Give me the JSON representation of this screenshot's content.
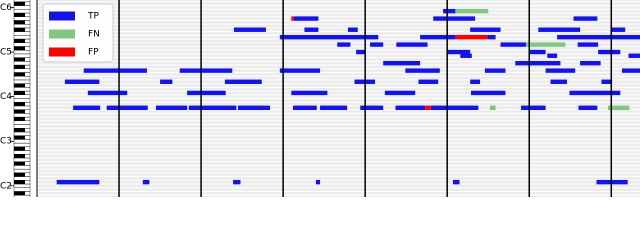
{
  "chart_data": {
    "type": "piano-roll",
    "ylim": [
      33,
      86
    ],
    "yticks": [
      {
        "value": 36,
        "label": "C2"
      },
      {
        "value": 48,
        "label": "C3"
      },
      {
        "value": 60,
        "label": "C4"
      },
      {
        "value": 72,
        "label": "C5"
      },
      {
        "value": 84,
        "label": "C6"
      }
    ],
    "xlim": [
      0,
      7.35
    ],
    "bar_lines": [
      1,
      2,
      3,
      4,
      5,
      6,
      7
    ],
    "legend": "upper left",
    "series": [
      {
        "name": "TP",
        "color": "#1414e6",
        "notes": [
          [
            83,
            4.95,
            5.1
          ],
          [
            81,
            3.13,
            3.43
          ],
          [
            81,
            4.83,
            5.34
          ],
          [
            81,
            6.54,
            6.83
          ],
          [
            78,
            2.4,
            2.79
          ],
          [
            78,
            3.26,
            3.43
          ],
          [
            78,
            3.79,
            3.91
          ],
          [
            78,
            5.28,
            5.65
          ],
          [
            78,
            6.11,
            6.62
          ],
          [
            78,
            6.99,
            7.17
          ],
          [
            76,
            2.96,
            4.16
          ],
          [
            76,
            4.67,
            5.1
          ],
          [
            76,
            5.49,
            5.59
          ],
          [
            76,
            6.34,
            7.35
          ],
          [
            74,
            3.66,
            3.82
          ],
          [
            74,
            4.06,
            4.22
          ],
          [
            74,
            4.38,
            4.76
          ],
          [
            74,
            5.65,
            5.96
          ],
          [
            74,
            6.59,
            6.84
          ],
          [
            72,
            3.89,
            4.0
          ],
          [
            72,
            5.0,
            5.28
          ],
          [
            72,
            6.01,
            6.2
          ],
          [
            72,
            6.84,
            7.11
          ],
          [
            71,
            5.16,
            5.3
          ],
          [
            71,
            6.22,
            6.34
          ],
          [
            71,
            7.21,
            7.35
          ],
          [
            69,
            4.22,
            4.67
          ],
          [
            69,
            5.83,
            6.38
          ],
          [
            69,
            6.62,
            6.87
          ],
          [
            67,
            0.57,
            1.34
          ],
          [
            67,
            1.74,
            2.38
          ],
          [
            67,
            2.96,
            3.45
          ],
          [
            67,
            4.49,
            4.91
          ],
          [
            67,
            5.46,
            5.71
          ],
          [
            67,
            6.2,
            6.56
          ],
          [
            67,
            7.13,
            7.35
          ],
          [
            64,
            0.34,
            0.76
          ],
          [
            64,
            1.5,
            1.65
          ],
          [
            64,
            2.29,
            2.74
          ],
          [
            64,
            3.87,
            4.12
          ],
          [
            64,
            4.65,
            4.89
          ],
          [
            64,
            5.28,
            5.4
          ],
          [
            64,
            6.26,
            6.46
          ],
          [
            64,
            6.88,
            7.01
          ],
          [
            61,
            0.62,
            1.1
          ],
          [
            61,
            1.83,
            2.3
          ],
          [
            61,
            3.1,
            3.54
          ],
          [
            61,
            4.24,
            4.61
          ],
          [
            61,
            5.29,
            5.71
          ],
          [
            61,
            6.49,
            7.11
          ],
          [
            57,
            0.44,
            0.77
          ],
          [
            57,
            0.85,
            1.35
          ],
          [
            57,
            1.45,
            1.83
          ],
          [
            57,
            1.85,
            2.43
          ],
          [
            57,
            2.45,
            2.84
          ],
          [
            57,
            3.12,
            3.41
          ],
          [
            57,
            3.45,
            3.78
          ],
          [
            57,
            3.94,
            4.22
          ],
          [
            57,
            4.37,
            4.73
          ],
          [
            57,
            4.8,
            5.38
          ],
          [
            57,
            5.9,
            6.2
          ],
          [
            57,
            6.6,
            6.83
          ],
          [
            37,
            0.24,
            0.76
          ],
          [
            37,
            1.29,
            1.37
          ],
          [
            37,
            2.39,
            2.48
          ],
          [
            37,
            3.4,
            3.45
          ],
          [
            37,
            5.07,
            5.15
          ],
          [
            37,
            6.82,
            7.2
          ]
        ]
      },
      {
        "name": "FN",
        "color": "#80c880",
        "notes": [
          [
            83,
            5.1,
            5.5
          ],
          [
            74,
            5.96,
            6.44
          ],
          [
            57,
            5.52,
            5.59
          ],
          [
            57,
            6.96,
            7.22
          ]
        ]
      },
      {
        "name": "FP",
        "color": "#ff0000",
        "notes": [
          [
            81,
            3.1,
            3.13
          ],
          [
            76,
            5.1,
            5.49
          ],
          [
            57,
            4.73,
            4.8
          ]
        ]
      }
    ]
  }
}
